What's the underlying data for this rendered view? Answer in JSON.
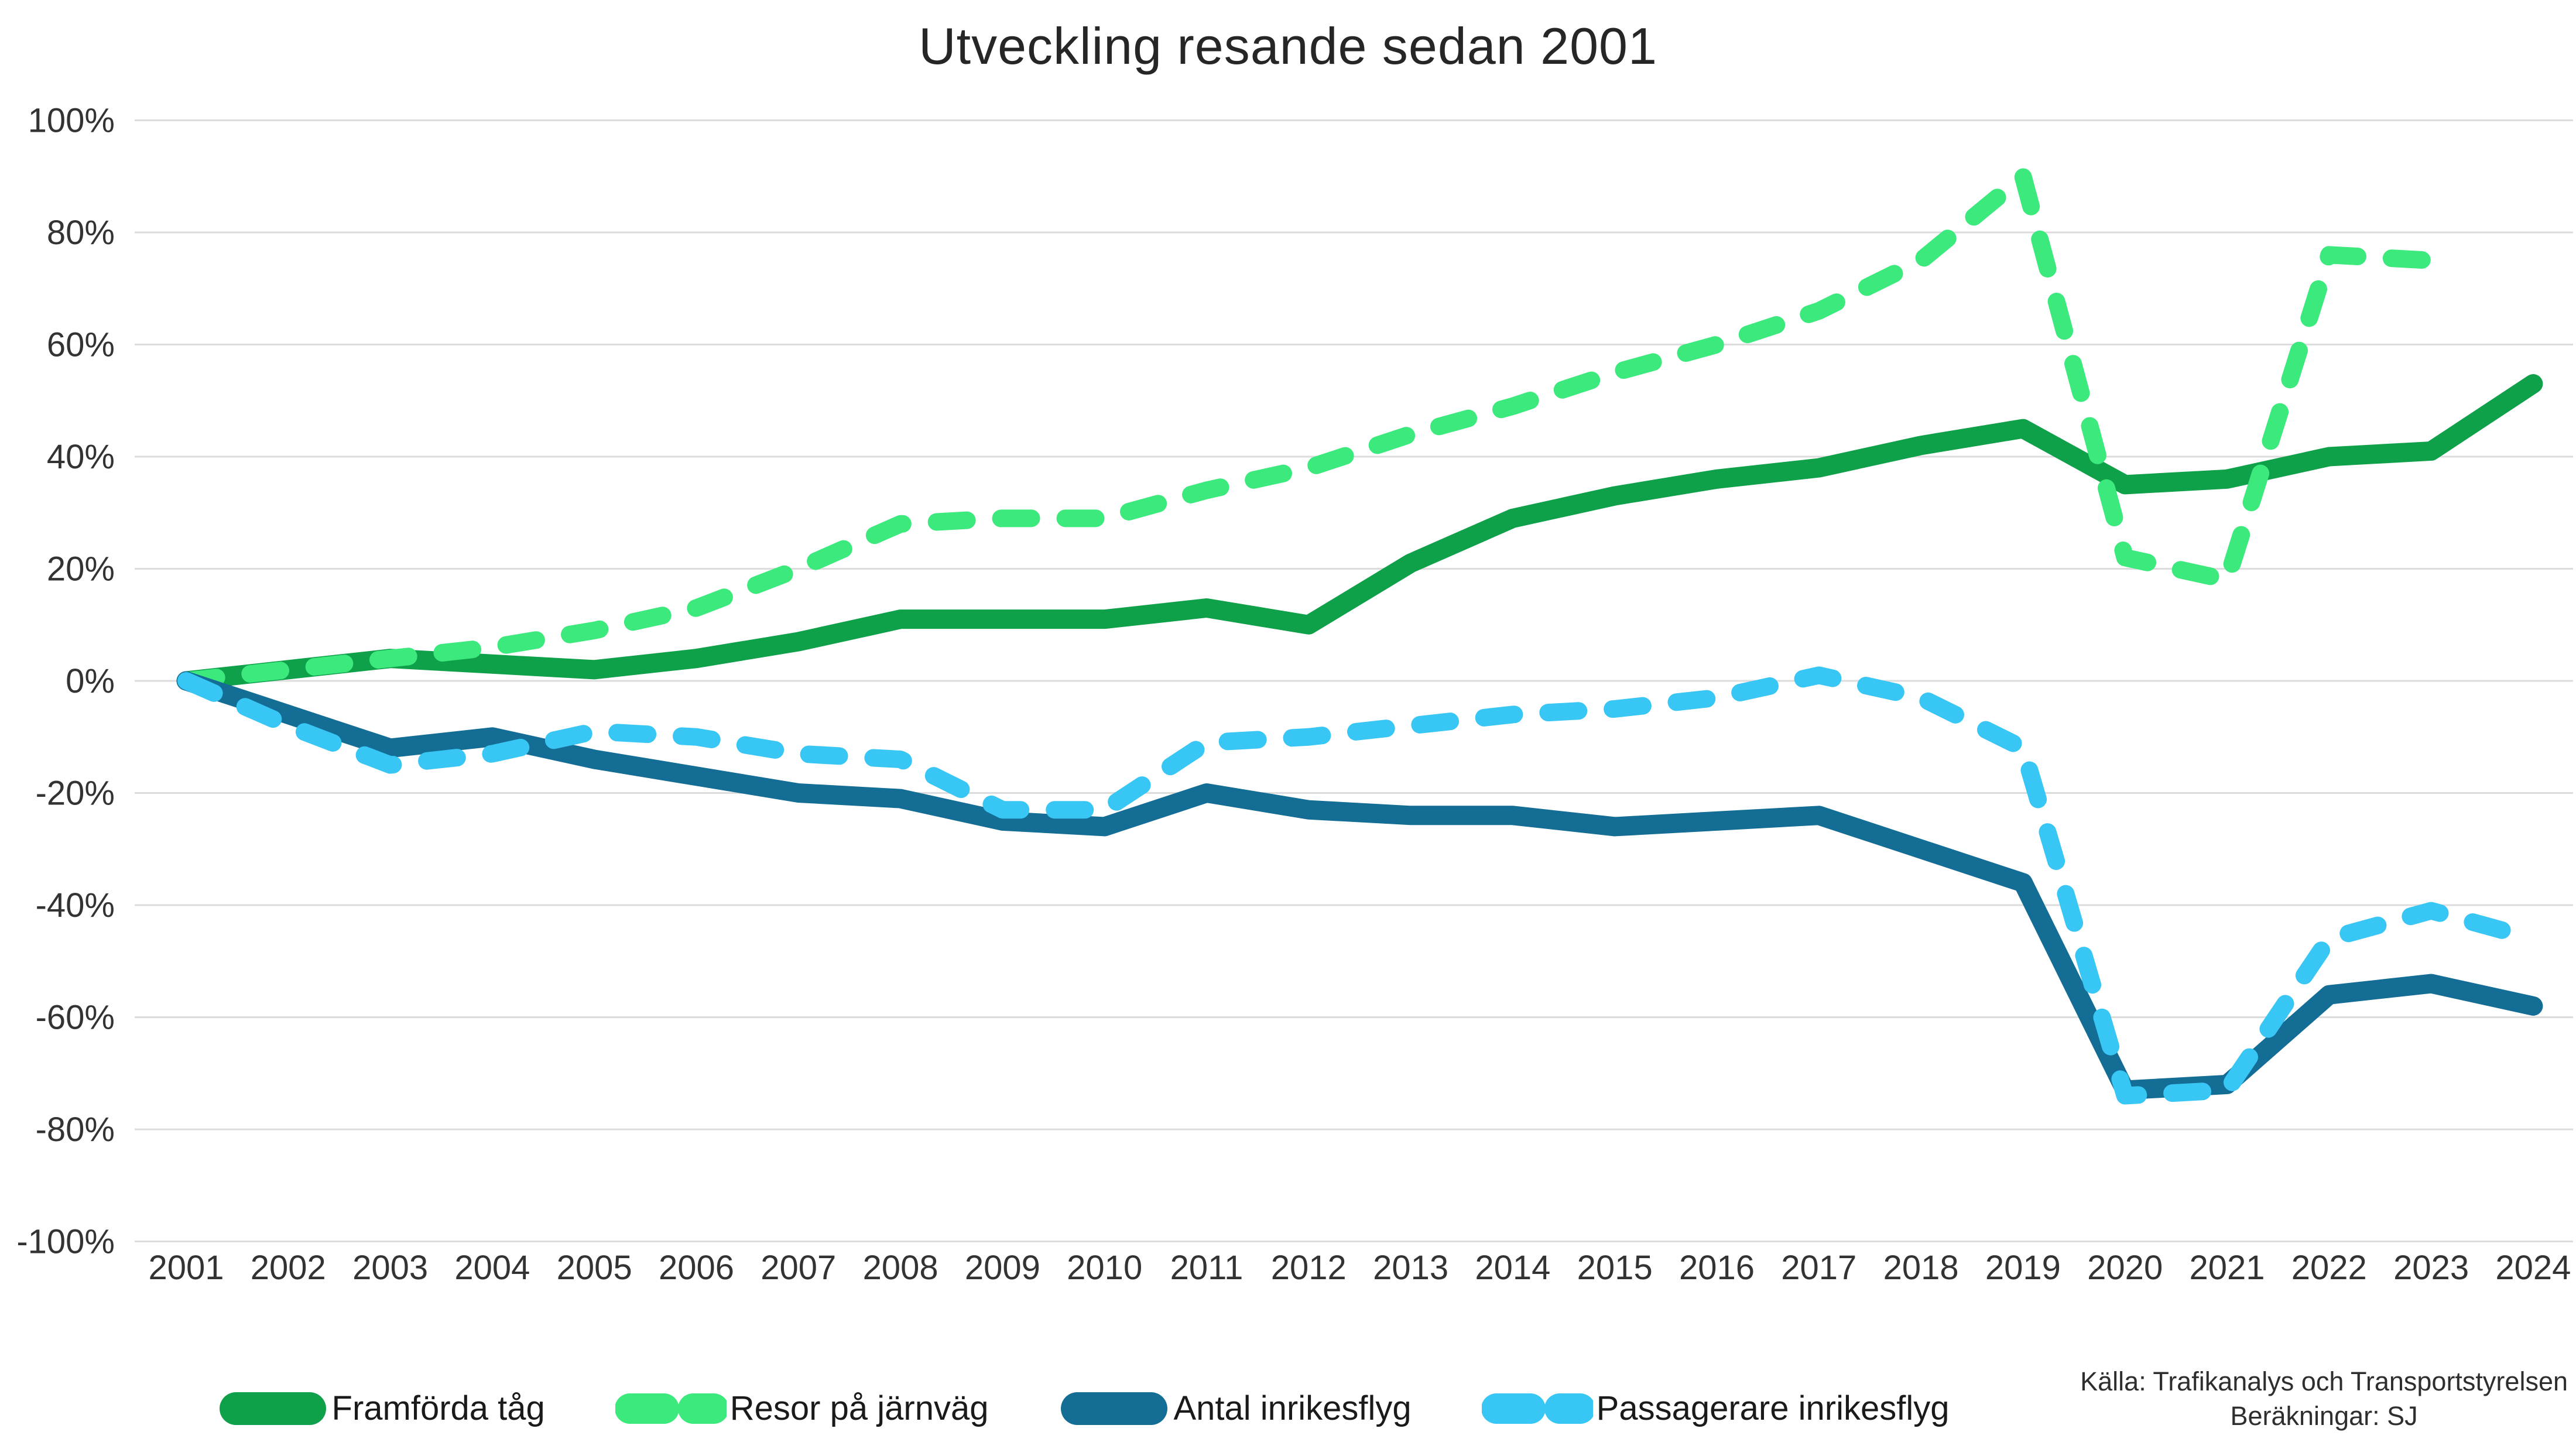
{
  "title": "Utveckling resande sedan 2001",
  "source": {
    "line1": "Källa: Trafikanalys och Transportstyrelsen",
    "line2": "Beräkningar: SJ"
  },
  "colors": {
    "grid": "#dcdcdc",
    "axis_text": "#333333",
    "title_text": "#262626",
    "framforda_tag": "#0fa04a",
    "resor_pa_jarnvag": "#3ce97d",
    "antal_inrikesflyg": "#136d94",
    "passagerare_inrikesflyg": "#38c6f4"
  },
  "chart_data": {
    "type": "line",
    "title": "Utveckling resande sedan 2001",
    "xlabel": "",
    "ylabel": "",
    "x": [
      2001,
      2002,
      2003,
      2004,
      2005,
      2006,
      2007,
      2008,
      2009,
      2010,
      2011,
      2012,
      2013,
      2014,
      2015,
      2016,
      2017,
      2018,
      2019,
      2020,
      2021,
      2022,
      2023,
      2024
    ],
    "series": [
      {
        "name": "Framförda tåg",
        "style": "solid",
        "color": "#0fa04a",
        "values": [
          0,
          2,
          4,
          3,
          2,
          4,
          7,
          11,
          11,
          11,
          13,
          10,
          21,
          29,
          33,
          36,
          38,
          42,
          45,
          35,
          36,
          40,
          41,
          53
        ]
      },
      {
        "name": "Resor på järnväg",
        "style": "dashed",
        "color": "#3ce97d",
        "values": [
          0,
          2,
          4,
          6,
          9,
          13,
          20,
          28,
          29,
          29,
          34,
          38,
          44,
          49,
          55,
          60,
          66,
          75,
          90,
          22,
          18,
          76,
          75,
          null
        ]
      },
      {
        "name": "Antal inrikesflyg",
        "style": "solid",
        "color": "#136d94",
        "values": [
          0,
          -6,
          -12,
          -10,
          -14,
          -17,
          -20,
          -21,
          -25,
          -26,
          -20,
          -23,
          -24,
          -24,
          -26,
          -25,
          -24,
          -30,
          -36,
          -73,
          -72,
          -56,
          -54,
          -58
        ]
      },
      {
        "name": "Passagerare inrikesflyg",
        "style": "dashed",
        "color": "#38c6f4",
        "values": [
          0,
          -8,
          -15,
          -13,
          -9,
          -10,
          -13,
          -14,
          -23,
          -23,
          -11,
          -10,
          -8,
          -6,
          -5,
          -3,
          1,
          -3,
          -12,
          -74,
          -73,
          -46,
          -41,
          -46
        ]
      }
    ],
    "ylim": [
      -100,
      100
    ],
    "ytick_step": 20,
    "ytick_suffix": "%",
    "grid": true,
    "legend_position": "bottom"
  }
}
